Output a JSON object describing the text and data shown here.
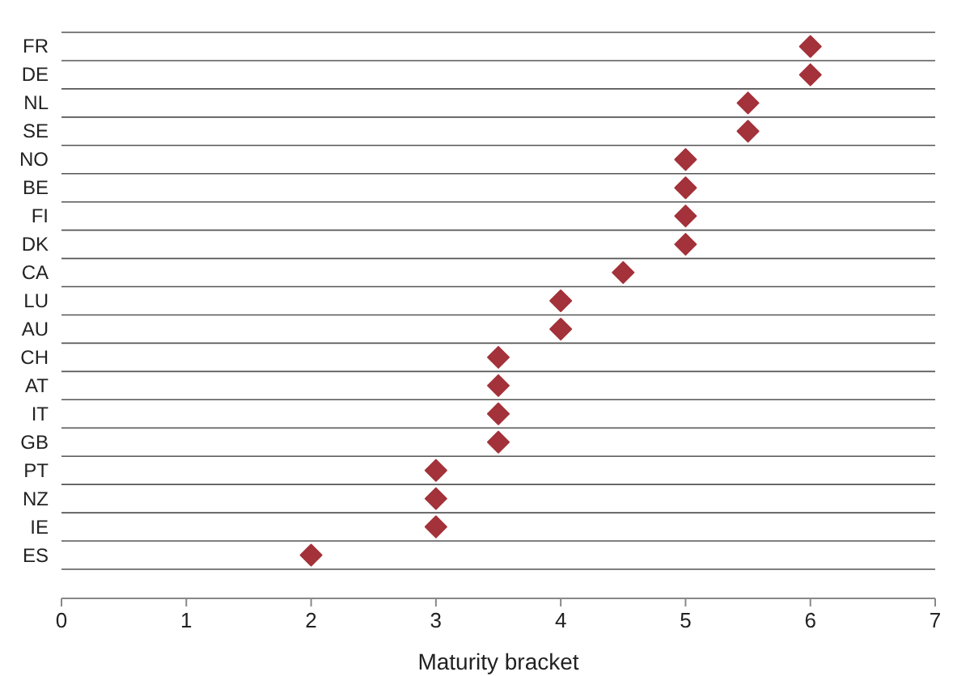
{
  "chart_data": {
    "type": "scatter",
    "orientation": "horizontal",
    "xlabel": "Maturity bracket",
    "categories": [
      "FR",
      "DE",
      "NL",
      "SE",
      "NO",
      "BE",
      "FI",
      "DK",
      "CA",
      "LU",
      "AU",
      "CH",
      "AT",
      "IT",
      "GB",
      "PT",
      "NZ",
      "IE",
      "ES"
    ],
    "series": [
      {
        "color": "#a3323a",
        "values": [
          6,
          6,
          5.5,
          5.5,
          5,
          5,
          5,
          5,
          4.5,
          4,
          4,
          3.5,
          3.5,
          3.5,
          3.5,
          3,
          3,
          3,
          2
        ]
      }
    ],
    "xlim": [
      0,
      7
    ],
    "xticks": [
      0,
      1,
      2,
      3,
      4,
      5,
      6,
      7
    ],
    "grid": "y",
    "marker": "diamond"
  }
}
